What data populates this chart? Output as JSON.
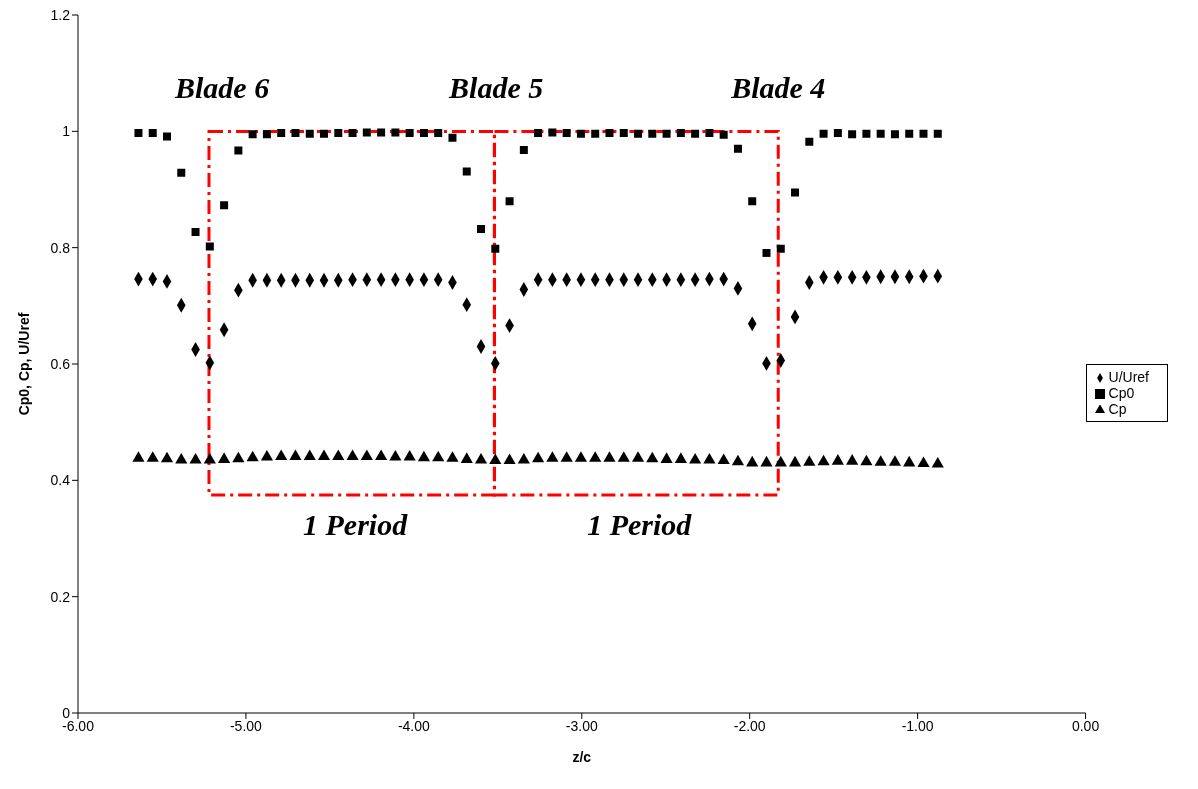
{
  "chart_data": {
    "type": "scatter",
    "xlabel": "z/c",
    "ylabel": "Cp0, Cp, U/Uref",
    "x": [
      -5.64,
      -5.555,
      -5.47,
      -5.385,
      -5.3,
      -5.215,
      -5.13,
      -5.045,
      -4.96,
      -4.875,
      -4.79,
      -4.705,
      -4.62,
      -4.535,
      -4.45,
      -4.365,
      -4.28,
      -4.195,
      -4.11,
      -4.025,
      -3.94,
      -3.855,
      -3.77,
      -3.685,
      -3.6,
      -3.515,
      -3.43,
      -3.345,
      -3.26,
      -3.175,
      -3.09,
      -3.005,
      -2.92,
      -2.835,
      -2.75,
      -2.665,
      -2.58,
      -2.495,
      -2.41,
      -2.325,
      -2.24,
      -2.155,
      -2.07,
      -1.985,
      -1.9,
      -1.815,
      -1.73,
      -1.645,
      -1.56,
      -1.475,
      -1.39,
      -1.305,
      -1.22,
      -1.135,
      -1.05,
      -0.965,
      -0.88
    ],
    "series": [
      {
        "name": "U/Uref",
        "color": "#000000",
        "marker": "diamond",
        "values": [
          0.746,
          0.746,
          0.742,
          0.701,
          0.625,
          0.602,
          0.659,
          0.727,
          0.744,
          0.744,
          0.744,
          0.744,
          0.744,
          0.744,
          0.744,
          0.745,
          0.745,
          0.745,
          0.745,
          0.745,
          0.745,
          0.745,
          0.74,
          0.702,
          0.63,
          0.601,
          0.666,
          0.728,
          0.745,
          0.745,
          0.745,
          0.745,
          0.745,
          0.745,
          0.745,
          0.745,
          0.745,
          0.745,
          0.745,
          0.745,
          0.746,
          0.746,
          0.73,
          0.669,
          0.601,
          0.606,
          0.681,
          0.74,
          0.749,
          0.749,
          0.749,
          0.749,
          0.75,
          0.75,
          0.75,
          0.751,
          0.751
        ]
      },
      {
        "name": "Cp0",
        "color": "#000000",
        "marker": "square",
        "values": [
          0.997,
          0.997,
          0.991,
          0.929,
          0.827,
          0.802,
          0.873,
          0.967,
          0.995,
          0.995,
          0.997,
          0.997,
          0.996,
          0.996,
          0.997,
          0.997,
          0.998,
          0.998,
          0.998,
          0.997,
          0.997,
          0.997,
          0.989,
          0.931,
          0.832,
          0.798,
          0.88,
          0.968,
          0.997,
          0.998,
          0.997,
          0.996,
          0.996,
          0.997,
          0.997,
          0.996,
          0.996,
          0.996,
          0.997,
          0.996,
          0.997,
          0.994,
          0.97,
          0.88,
          0.791,
          0.798,
          0.895,
          0.982,
          0.996,
          0.997,
          0.995,
          0.996,
          0.996,
          0.995,
          0.996,
          0.996,
          0.996
        ]
      },
      {
        "name": "Cp",
        "color": "#000000",
        "marker": "triangle",
        "values": [
          0.438,
          0.438,
          0.437,
          0.435,
          0.435,
          0.435,
          0.436,
          0.437,
          0.439,
          0.44,
          0.441,
          0.441,
          0.441,
          0.441,
          0.441,
          0.441,
          0.441,
          0.441,
          0.44,
          0.44,
          0.439,
          0.439,
          0.438,
          0.436,
          0.435,
          0.434,
          0.434,
          0.435,
          0.437,
          0.438,
          0.438,
          0.438,
          0.438,
          0.438,
          0.438,
          0.438,
          0.437,
          0.436,
          0.436,
          0.435,
          0.435,
          0.434,
          0.432,
          0.43,
          0.43,
          0.43,
          0.43,
          0.431,
          0.432,
          0.433,
          0.433,
          0.432,
          0.431,
          0.431,
          0.43,
          0.429,
          0.428
        ]
      }
    ],
    "xlim": [
      -6,
      0
    ],
    "xticks": [
      {
        "value": -6,
        "label": "-6.00"
      },
      {
        "value": -5,
        "label": "-5.00"
      },
      {
        "value": -4,
        "label": "-4.00"
      },
      {
        "value": -3,
        "label": "-3.00"
      },
      {
        "value": -2,
        "label": "-2.00"
      },
      {
        "value": -1,
        "label": "-1.00"
      },
      {
        "value": 0,
        "label": "0.00"
      }
    ],
    "ylim": [
      0,
      1.2
    ],
    "yticks": [
      0,
      0.2,
      0.4,
      0.6,
      0.8,
      1,
      1.2
    ],
    "grid": false,
    "legend": "right",
    "annotations": [
      "Blade 6",
      "Blade 5",
      "Blade 4",
      "1 Period",
      "1 Period"
    ]
  }
}
